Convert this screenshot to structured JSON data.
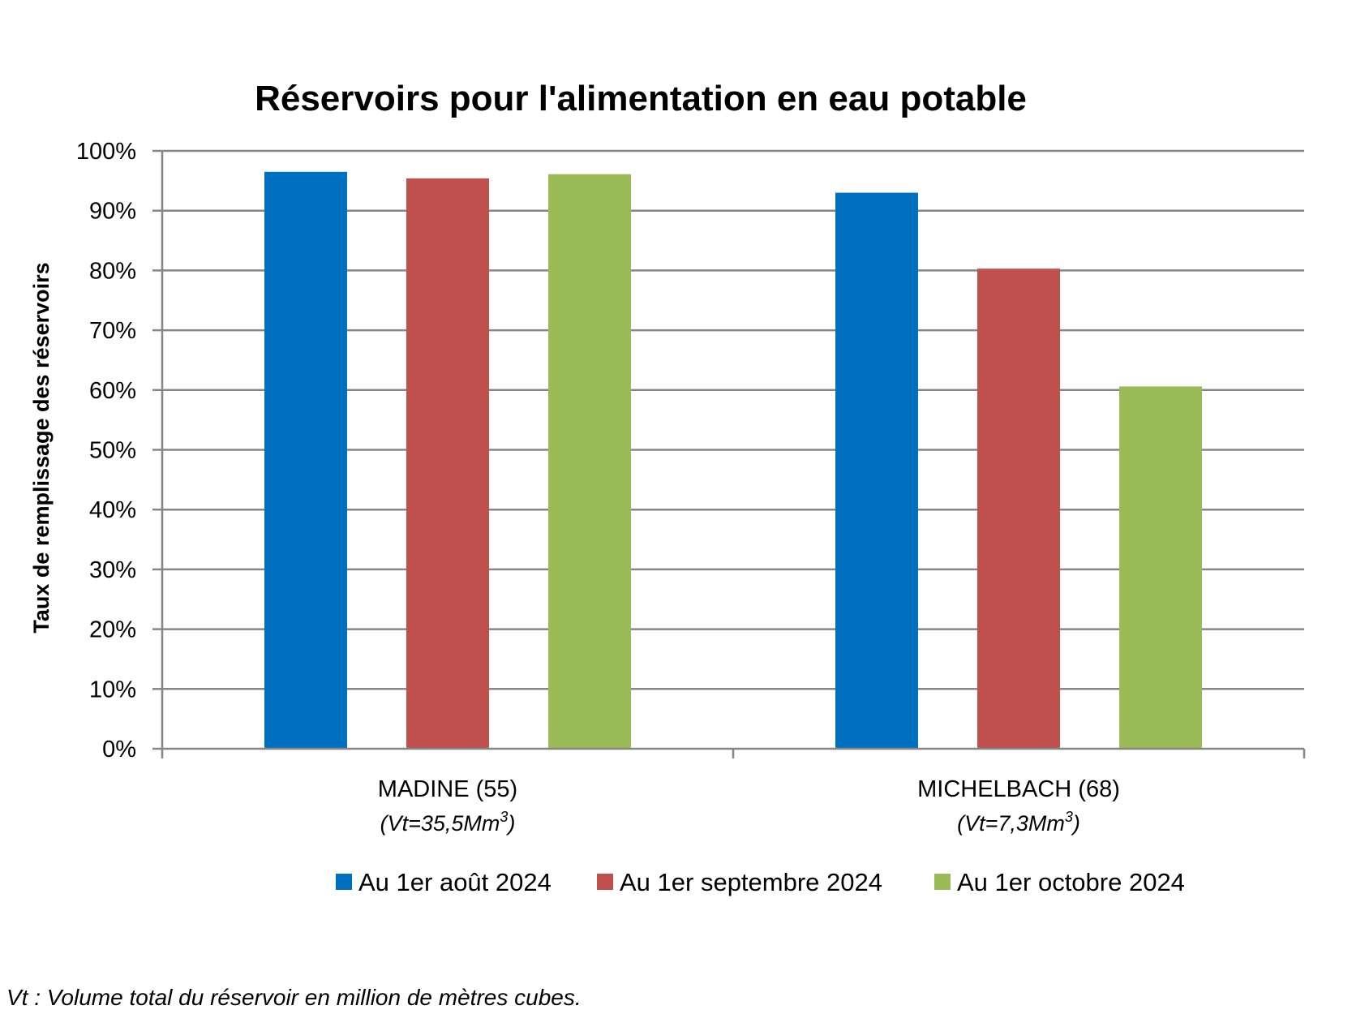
{
  "chart_data": {
    "type": "bar",
    "title": "Réservoirs pour l'alimentation en eau potable",
    "ylabel": "Taux de remplissage des réservoirs",
    "xlabel": "",
    "ylim": [
      0,
      100
    ],
    "yticks": [
      "0%",
      "10%",
      "20%",
      "30%",
      "40%",
      "50%",
      "60%",
      "70%",
      "80%",
      "90%",
      "100%"
    ],
    "categories": [
      {
        "name": "MADINE (55)",
        "sub_prefix": "(Vt=35,5Mm",
        "sub_sup": "3",
        "sub_suffix": ")"
      },
      {
        "name": "MICHELBACH (68)",
        "sub_prefix": "(Vt=7,3Mm",
        "sub_sup": "3",
        "sub_suffix": ")"
      }
    ],
    "series": [
      {
        "name": "Au 1er août 2024",
        "color": "#0070C0",
        "values": [
          96.5,
          93.0
        ]
      },
      {
        "name": "Au 1er septembre 2024",
        "color": "#C0504D",
        "values": [
          95.4,
          80.3
        ]
      },
      {
        "name": "Au 1er octobre 2024",
        "color": "#9BBB59",
        "values": [
          96.1,
          60.6
        ]
      }
    ],
    "grid": true,
    "legend": "bottom",
    "gridline_color": "#868686"
  },
  "footnote": "Vt : Volume total du réservoir en million de mètres cubes."
}
